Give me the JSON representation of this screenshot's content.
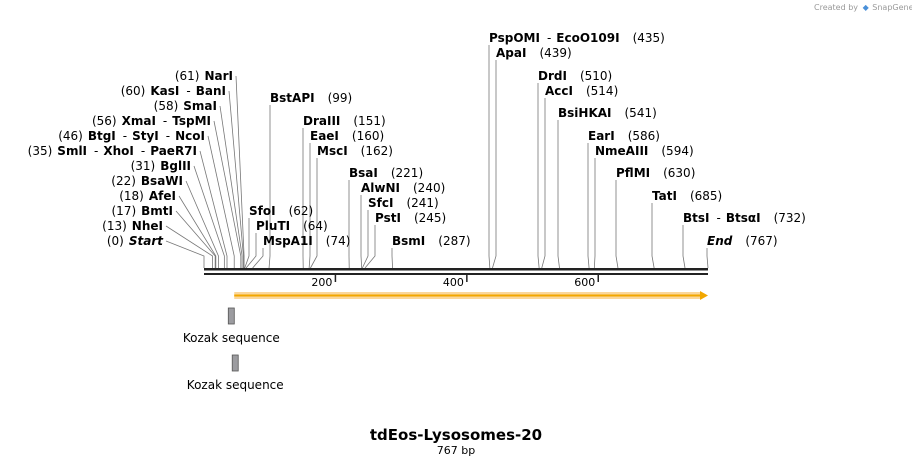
{
  "credit": {
    "prefix": "Created by",
    "brand": "SnapGene"
  },
  "title": "tdEos-Lysosomes-20",
  "subtitle": "767 bp",
  "sequence_length": 767,
  "axis": {
    "ticks": [
      200,
      400,
      600
    ]
  },
  "colors": {
    "arrow_fill": "#f2a700",
    "arrow_glow": "#fbd79b",
    "box_fill": "#9c9ca0",
    "backbone": "#222222"
  },
  "labels": [
    {
      "items": [
        [
          "(0)",
          "pos"
        ],
        [
          "Start",
          "ital"
        ]
      ],
      "pos": 0
    },
    {
      "items": [
        [
          "(13)",
          "pos"
        ],
        [
          "NheI",
          "enz"
        ]
      ],
      "pos": 13
    },
    {
      "items": [
        [
          "(17)",
          "pos"
        ],
        [
          "BmtI",
          "enz"
        ]
      ],
      "pos": 17
    },
    {
      "items": [
        [
          "(18)",
          "pos"
        ],
        [
          "AfeI",
          "enz"
        ]
      ],
      "pos": 18
    },
    {
      "items": [
        [
          "(22)",
          "pos"
        ],
        [
          "BsaWI",
          "enz"
        ]
      ],
      "pos": 22
    },
    {
      "items": [
        [
          "(31)",
          "pos"
        ],
        [
          "BglII",
          "enz"
        ]
      ],
      "pos": 31
    },
    {
      "items": [
        [
          "(35)",
          "pos"
        ],
        [
          "SmlI",
          "enz"
        ],
        [
          "-",
          "sep"
        ],
        [
          "XhoI",
          "enz"
        ],
        [
          "-",
          "sep"
        ],
        [
          "PaeR7I",
          "enz"
        ]
      ],
      "pos": 35
    },
    {
      "items": [
        [
          "(46)",
          "pos"
        ],
        [
          "BtgI",
          "enz"
        ],
        [
          "-",
          "sep"
        ],
        [
          "StyI",
          "enz"
        ],
        [
          "-",
          "sep"
        ],
        [
          "NcoI",
          "enz"
        ]
      ],
      "pos": 46
    },
    {
      "items": [
        [
          "(56)",
          "pos"
        ],
        [
          "XmaI",
          "enz"
        ],
        [
          "-",
          "sep"
        ],
        [
          "TspMI",
          "enz"
        ]
      ],
      "pos": 56
    },
    {
      "items": [
        [
          "(58)",
          "pos"
        ],
        [
          "SmaI",
          "enz"
        ]
      ],
      "pos": 58
    },
    {
      "items": [
        [
          "(60)",
          "pos"
        ],
        [
          "KasI",
          "enz"
        ],
        [
          "-",
          "sep"
        ],
        [
          "BanI",
          "enz"
        ]
      ],
      "pos": 60
    },
    {
      "items": [
        [
          "(61)",
          "pos"
        ],
        [
          "NarI",
          "enz"
        ]
      ],
      "pos": 61
    },
    {
      "items": [
        [
          "SfoI",
          "enz"
        ],
        [
          "(62)",
          "pos"
        ]
      ],
      "pos": 62
    },
    {
      "items": [
        [
          "PluTI",
          "enz"
        ],
        [
          "(64)",
          "pos"
        ]
      ],
      "pos": 64
    },
    {
      "items": [
        [
          "MspA1I",
          "enz"
        ],
        [
          "(74)",
          "pos"
        ]
      ],
      "pos": 74
    },
    {
      "items": [
        [
          "BstAPI",
          "enz"
        ],
        [
          "(99)",
          "pos"
        ]
      ],
      "pos": 99
    },
    {
      "items": [
        [
          "DraIII",
          "enz"
        ],
        [
          "(151)",
          "pos"
        ]
      ],
      "pos": 151
    },
    {
      "items": [
        [
          "EaeI",
          "enz"
        ],
        [
          "(160)",
          "pos"
        ]
      ],
      "pos": 160
    },
    {
      "items": [
        [
          "MscI",
          "enz"
        ],
        [
          "(162)",
          "pos"
        ]
      ],
      "pos": 162
    },
    {
      "items": [
        [
          "BsaI",
          "enz"
        ],
        [
          "(221)",
          "pos"
        ]
      ],
      "pos": 221
    },
    {
      "items": [
        [
          "AlwNI",
          "enz"
        ],
        [
          "(240)",
          "pos"
        ]
      ],
      "pos": 240
    },
    {
      "items": [
        [
          "SfcI",
          "enz"
        ],
        [
          "(241)",
          "pos"
        ]
      ],
      "pos": 241
    },
    {
      "items": [
        [
          "PstI",
          "enz"
        ],
        [
          "(245)",
          "pos"
        ]
      ],
      "pos": 245
    },
    {
      "items": [
        [
          "BsmI",
          "enz"
        ],
        [
          "(287)",
          "pos"
        ]
      ],
      "pos": 287
    },
    {
      "items": [
        [
          "PspOMI",
          "enz"
        ],
        [
          "-",
          "sep"
        ],
        [
          "EcoO109I",
          "enz"
        ],
        [
          "(435)",
          "pos"
        ]
      ],
      "pos": 435
    },
    {
      "items": [
        [
          "ApaI",
          "enz"
        ],
        [
          "(439)",
          "pos"
        ]
      ],
      "pos": 439
    },
    {
      "items": [
        [
          "DrdI",
          "enz"
        ],
        [
          "(510)",
          "pos"
        ]
      ],
      "pos": 510
    },
    {
      "items": [
        [
          "AccI",
          "enz"
        ],
        [
          "(514)",
          "pos"
        ]
      ],
      "pos": 514
    },
    {
      "items": [
        [
          "BsiHKAI",
          "enz"
        ],
        [
          "(541)",
          "pos"
        ]
      ],
      "pos": 541
    },
    {
      "items": [
        [
          "EarI",
          "enz"
        ],
        [
          "(586)",
          "pos"
        ]
      ],
      "pos": 586
    },
    {
      "items": [
        [
          "NmeAIII",
          "enz"
        ],
        [
          "(594)",
          "pos"
        ]
      ],
      "pos": 594
    },
    {
      "items": [
        [
          "PflMI",
          "enz"
        ],
        [
          "(630)",
          "pos"
        ]
      ],
      "pos": 630
    },
    {
      "items": [
        [
          "TatI",
          "enz"
        ],
        [
          "(685)",
          "pos"
        ]
      ],
      "pos": 685
    },
    {
      "items": [
        [
          "BtsI",
          "enz"
        ],
        [
          "-",
          "sep"
        ],
        [
          "BtsαI",
          "enz"
        ],
        [
          "(732)",
          "pos"
        ]
      ],
      "pos": 732
    },
    {
      "items": [
        [
          "End",
          "ital"
        ],
        [
          "(767)",
          "pos"
        ]
      ],
      "pos": 767
    }
  ],
  "features": [
    {
      "label": "Kozak sequence",
      "start": 40,
      "end": 50
    },
    {
      "label": "Kozak sequence",
      "start": 46,
      "end": 56
    }
  ],
  "orf": {
    "start": 46,
    "end": 767,
    "direction": "forward"
  }
}
